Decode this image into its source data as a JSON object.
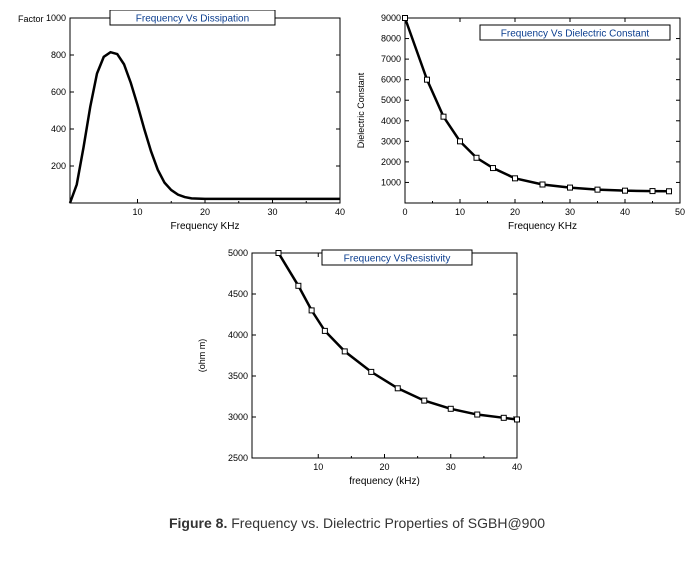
{
  "caption_label": "Figure 8.",
  "caption_text": " Frequency vs. Dielectric Properties of SGBH@900",
  "chart1": {
    "type": "line",
    "title": "Frequency Vs Dissipation",
    "xlabel": "Frequency KHz",
    "ylabel_prefix": "Factor",
    "ylabel_suffix": "1000",
    "xlim": [
      0,
      40
    ],
    "ylim": [
      0,
      1000
    ],
    "xticks": [
      10,
      20,
      30,
      40
    ],
    "yticks": [
      200,
      400,
      600,
      800,
      1000
    ],
    "line_color": "#000000",
    "line_width": 2.5,
    "background_color": "#ffffff",
    "data": [
      [
        0,
        0
      ],
      [
        1,
        100
      ],
      [
        2,
        300
      ],
      [
        3,
        520
      ],
      [
        4,
        700
      ],
      [
        5,
        790
      ],
      [
        6,
        815
      ],
      [
        7,
        805
      ],
      [
        8,
        750
      ],
      [
        9,
        650
      ],
      [
        10,
        530
      ],
      [
        11,
        400
      ],
      [
        12,
        280
      ],
      [
        13,
        180
      ],
      [
        14,
        110
      ],
      [
        15,
        70
      ],
      [
        16,
        45
      ],
      [
        17,
        32
      ],
      [
        18,
        25
      ],
      [
        20,
        22
      ],
      [
        25,
        22
      ],
      [
        30,
        22
      ],
      [
        35,
        22
      ],
      [
        40,
        22
      ]
    ]
  },
  "chart2": {
    "type": "line-markers",
    "title": "Frequency Vs Dielectric Constant",
    "xlabel": "Frequency KHz",
    "ylabel": "Dielectric Constant",
    "xlim": [
      0,
      50
    ],
    "ylim": [
      0,
      9000
    ],
    "xticks": [
      0,
      10,
      20,
      30,
      40,
      50
    ],
    "yticks": [
      1000,
      2000,
      3000,
      4000,
      5000,
      6000,
      7000,
      8000,
      9000
    ],
    "line_color": "#000000",
    "line_width": 2.5,
    "marker_color": "#ffffff",
    "marker_border": "#000000",
    "marker_size": 5,
    "background_color": "#ffffff",
    "data": [
      [
        0,
        9000
      ],
      [
        4,
        6000
      ],
      [
        7,
        4200
      ],
      [
        10,
        3000
      ],
      [
        13,
        2200
      ],
      [
        16,
        1700
      ],
      [
        20,
        1200
      ],
      [
        25,
        900
      ],
      [
        30,
        750
      ],
      [
        35,
        650
      ],
      [
        40,
        600
      ],
      [
        45,
        580
      ],
      [
        48,
        570
      ]
    ]
  },
  "chart3": {
    "type": "line-markers",
    "title": "Frequency VsResistivity",
    "xlabel": "frequency (kHz)",
    "ylabel": "(ohm m)",
    "xlim": [
      0,
      40
    ],
    "ylim": [
      2500,
      5000
    ],
    "xticks": [
      10,
      20,
      30,
      40
    ],
    "yticks": [
      2500,
      3000,
      3500,
      4000,
      4500,
      5000
    ],
    "line_color": "#000000",
    "line_width": 2.5,
    "marker_color": "#ffffff",
    "marker_border": "#000000",
    "marker_size": 5,
    "background_color": "#ffffff",
    "data": [
      [
        4,
        5000
      ],
      [
        7,
        4600
      ],
      [
        9,
        4300
      ],
      [
        11,
        4050
      ],
      [
        14,
        3800
      ],
      [
        18,
        3550
      ],
      [
        22,
        3350
      ],
      [
        26,
        3200
      ],
      [
        30,
        3100
      ],
      [
        34,
        3030
      ],
      [
        38,
        2990
      ],
      [
        40,
        2970
      ]
    ]
  }
}
